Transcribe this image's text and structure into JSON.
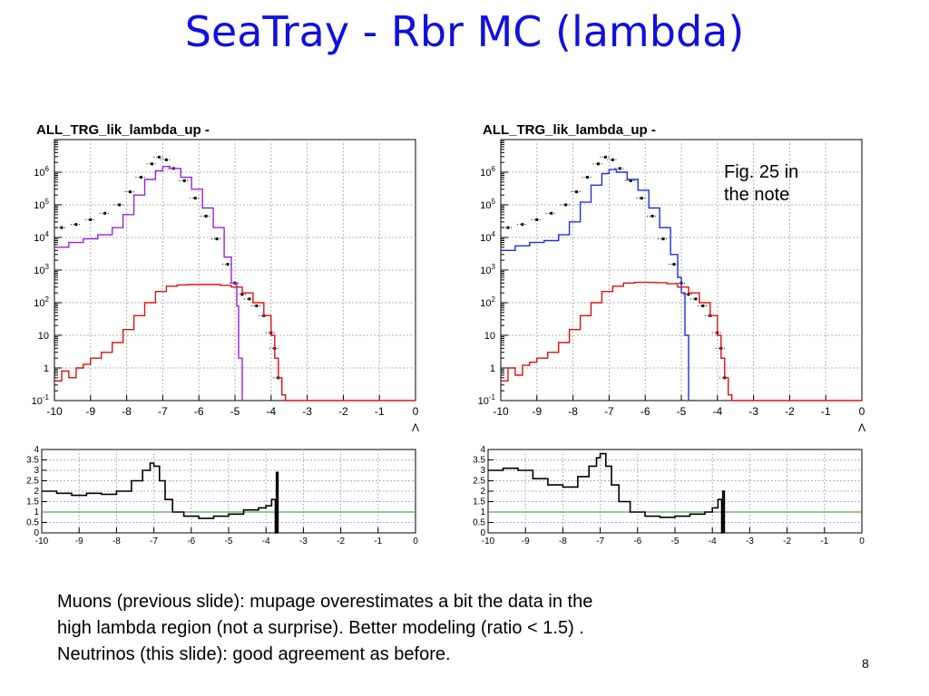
{
  "slide": {
    "title": "SeaTray - Rbr MC (lambda)",
    "fig_note_line1": "Fig. 25 in",
    "fig_note_line2": "the note",
    "caption_line1": "Muons (previous slide): mupage overestimates a bit the data in the",
    "caption_line2": "high lambda region (not a surprise). Better modeling (ratio < 1.5) .",
    "caption_line3": "Neutrinos (this slide): good agreement as before.",
    "page_number": "8"
  },
  "colors": {
    "title": "#1010e0",
    "left_mc": "#9a20e0",
    "right_mc": "#1a30e0",
    "neutrino": "#e01010",
    "data": "#000000",
    "ratio_ref": "#2a9a2a",
    "grid": "#b0b0b0"
  },
  "chart_data": [
    {
      "type": "line",
      "title": "ALL_TRG_lik_lambda_up -",
      "xlabel": "Λ",
      "xlim": [
        -10,
        0
      ],
      "ylim": [
        0.1,
        10000000
      ],
      "yscale": "log",
      "grid": true,
      "x_ticks": [
        "-10",
        "-9",
        "-8",
        "-7",
        "-6",
        "-5",
        "-4",
        "-3",
        "-2",
        "-1",
        "0"
      ],
      "y_ticks": [
        {
          "base": "10",
          "exp": "-1"
        },
        {
          "base": "1",
          "exp": ""
        },
        {
          "base": "10",
          "exp": ""
        },
        {
          "base": "10",
          "exp": "2"
        },
        {
          "base": "10",
          "exp": "3"
        },
        {
          "base": "10",
          "exp": "4"
        },
        {
          "base": "10",
          "exp": "5"
        },
        {
          "base": "10",
          "exp": "6"
        }
      ],
      "series": [
        {
          "role": "data",
          "style": "markers",
          "x": [
            -9.8,
            -9.4,
            -9.0,
            -8.6,
            -8.2,
            -7.9,
            -7.6,
            -7.3,
            -7.1,
            -6.9,
            -6.7,
            -6.4,
            -6.1,
            -5.8,
            -5.5,
            -5.2,
            -5.0,
            -4.8,
            -4.6,
            -4.4,
            -4.2,
            -4.0,
            -3.9,
            -3.8
          ],
          "y": [
            20000,
            25000,
            35000,
            55000,
            100000,
            250000,
            700000,
            1800000,
            2900000,
            2400000,
            1300000,
            550000,
            160000,
            45000,
            9000,
            1500,
            400,
            180,
            130,
            80,
            40,
            12,
            4,
            0.5
          ]
        },
        {
          "role": "mc",
          "style": "step",
          "x": [
            -10,
            -9.6,
            -9.2,
            -8.8,
            -8.4,
            -8.1,
            -7.8,
            -7.5,
            -7.2,
            -7.0,
            -6.8,
            -6.5,
            -6.2,
            -5.9,
            -5.6,
            -5.3,
            -5.1,
            -4.95,
            -4.9,
            -4.8
          ],
          "y": [
            5000,
            7000,
            9000,
            12000,
            20000,
            50000,
            200000,
            600000,
            1100000,
            1500000,
            1300000,
            700000,
            300000,
            80000,
            20000,
            2500,
            400,
            80,
            2,
            0.1
          ]
        },
        {
          "role": "neutrino",
          "style": "step",
          "x": [
            -10,
            -9.8,
            -9.6,
            -9.4,
            -9.2,
            -9.0,
            -8.7,
            -8.4,
            -8.1,
            -7.8,
            -7.5,
            -7.2,
            -6.9,
            -6.6,
            -6.3,
            -6.0,
            -5.7,
            -5.4,
            -5.1,
            -4.8,
            -4.5,
            -4.2,
            -4.0,
            -3.9,
            -3.8,
            -3.7,
            -3.6,
            0
          ],
          "y": [
            0.4,
            0.8,
            0.5,
            1.0,
            1.3,
            2,
            3,
            6,
            15,
            40,
            100,
            220,
            320,
            350,
            360,
            360,
            360,
            340,
            300,
            200,
            100,
            40,
            10,
            2,
            0.5,
            0.15,
            0.1,
            0.1
          ]
        }
      ]
    },
    {
      "type": "line",
      "title": "",
      "xlim": [
        -10,
        0
      ],
      "ylim": [
        0,
        4
      ],
      "grid": true,
      "x_ticks": [
        "-10",
        "-9",
        "-8",
        "-7",
        "-6",
        "-5",
        "-4",
        "-3",
        "-2",
        "-1",
        "0"
      ],
      "y_ticks": [
        "0",
        "0.5",
        "1",
        "1.5",
        "2",
        "2.5",
        "3",
        "3.5",
        "4"
      ],
      "reference_y": 1,
      "series": [
        {
          "role": "ratio",
          "style": "step",
          "x": [
            -10,
            -9.6,
            -9.2,
            -8.8,
            -8.4,
            -8.0,
            -7.6,
            -7.3,
            -7.1,
            -7.0,
            -6.85,
            -6.7,
            -6.5,
            -6.2,
            -5.8,
            -5.4,
            -5.0,
            -4.6,
            -4.2,
            -4.0,
            -3.85,
            -3.75,
            -3.72,
            -3.7,
            -3.68
          ],
          "y": [
            2.0,
            1.9,
            1.8,
            1.9,
            1.85,
            2.0,
            2.5,
            3.0,
            3.35,
            3.2,
            2.5,
            1.6,
            1.0,
            0.8,
            0.7,
            0.8,
            0.9,
            1.1,
            1.2,
            1.3,
            1.6,
            0,
            2.9,
            2.9,
            0
          ]
        }
      ]
    },
    {
      "type": "line",
      "title": "ALL_TRG_lik_lambda_up -",
      "xlabel": "Λ",
      "xlim": [
        -10,
        0
      ],
      "ylim": [
        0.1,
        10000000
      ],
      "yscale": "log",
      "grid": true,
      "x_ticks": [
        "-10",
        "-9",
        "-8",
        "-7",
        "-6",
        "-5",
        "-4",
        "-3",
        "-2",
        "-1",
        "0"
      ],
      "y_ticks": [
        {
          "base": "10",
          "exp": "-1"
        },
        {
          "base": "1",
          "exp": ""
        },
        {
          "base": "10",
          "exp": ""
        },
        {
          "base": "10",
          "exp": "2"
        },
        {
          "base": "10",
          "exp": "3"
        },
        {
          "base": "10",
          "exp": "4"
        },
        {
          "base": "10",
          "exp": "5"
        },
        {
          "base": "10",
          "exp": "6"
        }
      ],
      "series": [
        {
          "role": "data",
          "style": "markers",
          "x": [
            -9.8,
            -9.4,
            -9.0,
            -8.6,
            -8.2,
            -7.9,
            -7.6,
            -7.3,
            -7.1,
            -6.9,
            -6.7,
            -6.4,
            -6.1,
            -5.8,
            -5.5,
            -5.2,
            -5.0,
            -4.8,
            -4.6,
            -4.4,
            -4.2,
            -4.0,
            -3.9,
            -3.8
          ],
          "y": [
            20000,
            25000,
            35000,
            55000,
            100000,
            250000,
            700000,
            1800000,
            2900000,
            2400000,
            1300000,
            550000,
            160000,
            45000,
            9000,
            1500,
            400,
            180,
            130,
            80,
            40,
            12,
            4,
            0.5
          ]
        },
        {
          "role": "mc",
          "style": "step",
          "x": [
            -10,
            -9.6,
            -9.2,
            -8.8,
            -8.4,
            -8.1,
            -7.8,
            -7.5,
            -7.2,
            -7.0,
            -6.8,
            -6.5,
            -6.2,
            -5.9,
            -5.6,
            -5.3,
            -5.1,
            -5.0,
            -4.9,
            -4.8
          ],
          "y": [
            4000,
            5500,
            7000,
            8000,
            12000,
            30000,
            120000,
            400000,
            900000,
            1200000,
            1000000,
            600000,
            280000,
            80000,
            20000,
            3000,
            600,
            200,
            10,
            0.1
          ]
        },
        {
          "role": "neutrino",
          "style": "step",
          "x": [
            -10,
            -9.8,
            -9.6,
            -9.4,
            -9.2,
            -9.0,
            -8.7,
            -8.4,
            -8.1,
            -7.8,
            -7.5,
            -7.2,
            -6.9,
            -6.6,
            -6.3,
            -6.0,
            -5.7,
            -5.4,
            -5.1,
            -4.8,
            -4.5,
            -4.2,
            -4.0,
            -3.9,
            -3.8,
            -3.7,
            -3.6,
            0
          ],
          "y": [
            0.4,
            1.0,
            0.6,
            1.2,
            1.5,
            2,
            3,
            6,
            15,
            40,
            100,
            220,
            320,
            400,
            420,
            420,
            410,
            380,
            300,
            200,
            100,
            40,
            10,
            2,
            0.5,
            0.15,
            0.1,
            0.1
          ]
        }
      ]
    },
    {
      "type": "line",
      "title": "",
      "xlim": [
        -10,
        0
      ],
      "ylim": [
        0,
        4
      ],
      "grid": true,
      "x_ticks": [
        "-10",
        "-9",
        "-8",
        "-7",
        "-6",
        "-5",
        "-4",
        "-3",
        "-2",
        "-1",
        "0"
      ],
      "y_ticks": [
        "0",
        "0.5",
        "1",
        "1.5",
        "2",
        "2.5",
        "3",
        "3.5",
        "4"
      ],
      "reference_y": 1,
      "series": [
        {
          "role": "ratio",
          "style": "step",
          "x": [
            -10,
            -9.6,
            -9.2,
            -8.8,
            -8.4,
            -8.0,
            -7.6,
            -7.3,
            -7.1,
            -7.0,
            -6.85,
            -6.7,
            -6.5,
            -6.2,
            -5.8,
            -5.4,
            -5.0,
            -4.6,
            -4.2,
            -4.0,
            -3.85,
            -3.75,
            -3.72,
            -3.7,
            -3.68
          ],
          "y": [
            3.0,
            3.1,
            3.0,
            2.6,
            2.3,
            2.2,
            2.7,
            3.2,
            3.6,
            3.8,
            3.2,
            2.3,
            1.5,
            1.0,
            0.8,
            0.75,
            0.8,
            0.9,
            1.0,
            1.2,
            1.6,
            0,
            2.0,
            2.0,
            0
          ]
        }
      ]
    }
  ]
}
